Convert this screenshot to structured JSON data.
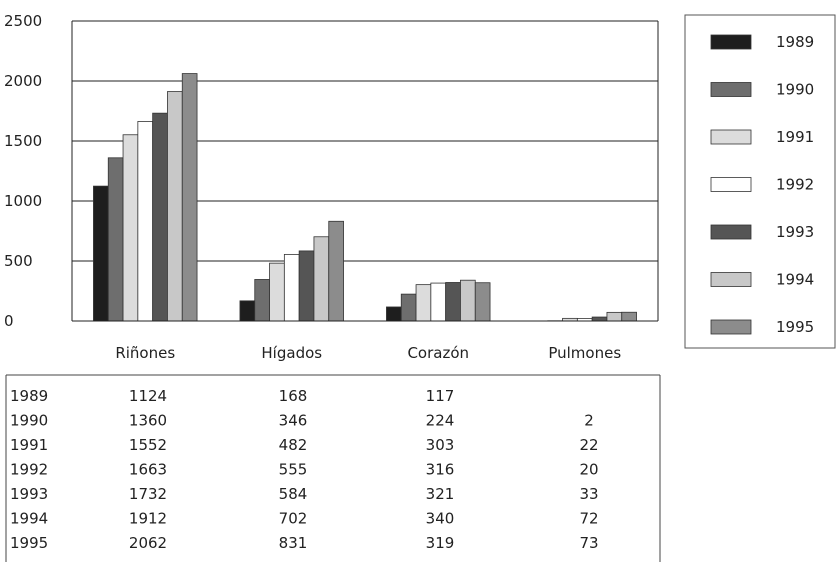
{
  "chart_data": {
    "type": "bar",
    "categories": [
      "Riñones",
      "Hígados",
      "Corazón",
      "Pulmones"
    ],
    "ylim": [
      0,
      2500
    ],
    "yticks": [
      0,
      500,
      1000,
      1500,
      2000,
      2500
    ],
    "grid": true,
    "legend_placement": "right",
    "series": [
      {
        "name": "1989",
        "color": "#1e1e1e",
        "values": [
          1124,
          168,
          117,
          0
        ],
        "labels": [
          "1124",
          "168",
          "117",
          ""
        ]
      },
      {
        "name": "1990",
        "color": "#6e6e6e",
        "values": [
          1360,
          346,
          224,
          2
        ],
        "labels": [
          "1360",
          "346",
          "224",
          "2"
        ]
      },
      {
        "name": "1991",
        "color": "#dcdcdc",
        "values": [
          1552,
          482,
          303,
          22
        ],
        "labels": [
          "1552",
          "482",
          "303",
          "22"
        ]
      },
      {
        "name": "1992",
        "color": "#ffffff",
        "values": [
          1663,
          555,
          316,
          20
        ],
        "labels": [
          "1663",
          "555",
          "316",
          "20"
        ]
      },
      {
        "name": "1993",
        "color": "#555555",
        "values": [
          1732,
          584,
          321,
          33
        ],
        "labels": [
          "1732",
          "584",
          "321",
          "33"
        ]
      },
      {
        "name": "1994",
        "color": "#c8c8c8",
        "values": [
          1912,
          702,
          340,
          72
        ],
        "labels": [
          "1912",
          "702",
          "340",
          "72"
        ]
      },
      {
        "name": "1995",
        "color": "#8c8c8c",
        "values": [
          2062,
          831,
          319,
          73
        ],
        "labels": [
          "2062",
          "831",
          "319",
          "73"
        ]
      }
    ]
  }
}
